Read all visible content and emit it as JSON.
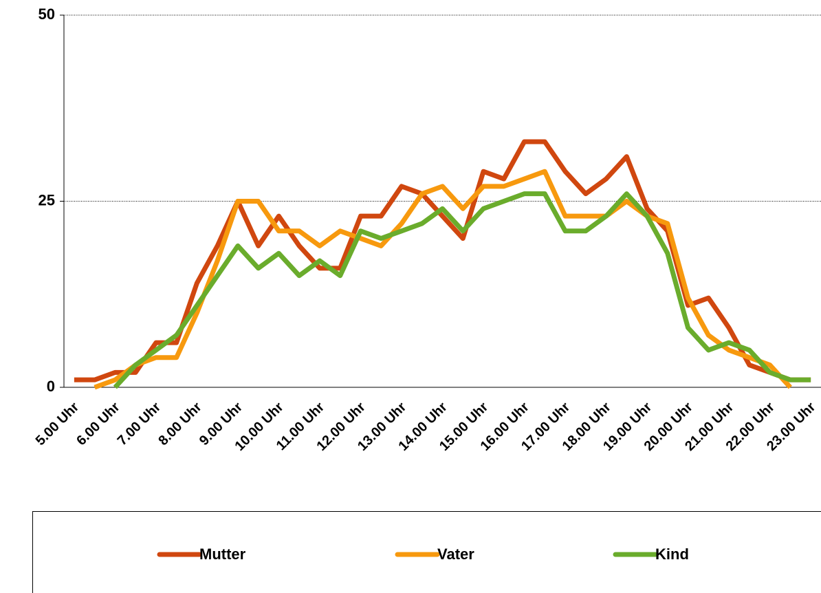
{
  "chart_data": {
    "type": "line",
    "categories": [
      "5.00 Uhr",
      null,
      "6.00 Uhr",
      null,
      "7.00 Uhr",
      null,
      "8.00 Uhr",
      null,
      "9.00 Uhr",
      null,
      "10.00 Uhr",
      null,
      "11.00 Uhr",
      null,
      "12.00 Uhr",
      null,
      "13.00 Uhr",
      null,
      "14.00 Uhr",
      null,
      "15.00 Uhr",
      null,
      "16.00 Uhr",
      null,
      "17.00 Uhr",
      null,
      "18.00 Uhr",
      null,
      "19.00 Uhr",
      null,
      "20.00 Uhr",
      null,
      "21.00 Uhr",
      null,
      "22.00 Uhr",
      null,
      "23.00 Uhr"
    ],
    "series": [
      {
        "name": "Mutter",
        "color": "#d0470f",
        "values": [
          1,
          1,
          2,
          2,
          6,
          6,
          14,
          19,
          25,
          19,
          23,
          19,
          16,
          16,
          23,
          23,
          27,
          26,
          23,
          20,
          29,
          28,
          33,
          33,
          29,
          26,
          28,
          31,
          24,
          21,
          11,
          12,
          8,
          3,
          2,
          1,
          1
        ]
      },
      {
        "name": "Vater",
        "color": "#f7990e",
        "values": [
          null,
          0,
          1,
          3,
          4,
          4,
          10,
          17,
          25,
          25,
          21,
          21,
          19,
          21,
          20,
          19,
          22,
          26,
          27,
          24,
          27,
          27,
          28,
          29,
          23,
          23,
          23,
          25,
          23,
          22,
          12,
          7,
          5,
          4,
          3,
          0,
          null
        ]
      },
      {
        "name": "Kind",
        "color": "#6aac2c",
        "values": [
          null,
          null,
          0,
          3,
          5,
          7,
          11,
          15,
          19,
          16,
          18,
          15,
          17,
          15,
          21,
          20,
          21,
          22,
          24,
          21,
          24,
          25,
          26,
          26,
          21,
          21,
          23,
          26,
          23,
          18,
          8,
          5,
          6,
          5,
          2,
          1,
          1
        ]
      }
    ],
    "ylim": [
      0,
      50
    ],
    "yticks": [
      0,
      25,
      50
    ],
    "grid": true,
    "legend": "bottom"
  }
}
